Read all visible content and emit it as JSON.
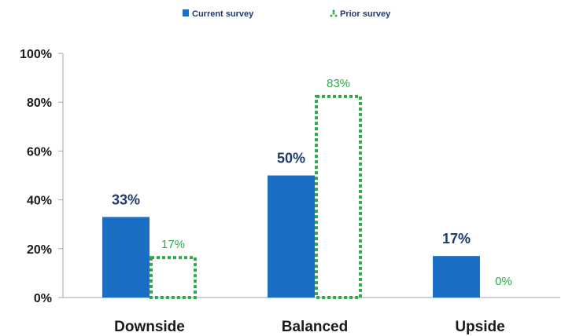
{
  "chart_data": {
    "type": "bar",
    "categories": [
      "Downside",
      "Balanced",
      "Upside"
    ],
    "series": [
      {
        "name": "Current survey",
        "values": [
          33,
          50,
          17
        ],
        "labels": [
          "33%",
          "50%",
          "17%"
        ],
        "color": "#1a6fc4",
        "style": "solid"
      },
      {
        "name": "Prior survey",
        "values": [
          17,
          83,
          0
        ],
        "labels": [
          "17%",
          "83%",
          "0%"
        ],
        "color": "#2eaa4a",
        "style": "dotted-outline"
      }
    ],
    "y_ticks": [
      "0%",
      "20%",
      "40%",
      "60%",
      "80%",
      "100%"
    ],
    "ylim": [
      0,
      100
    ],
    "grid": false,
    "legend_position": "top"
  }
}
